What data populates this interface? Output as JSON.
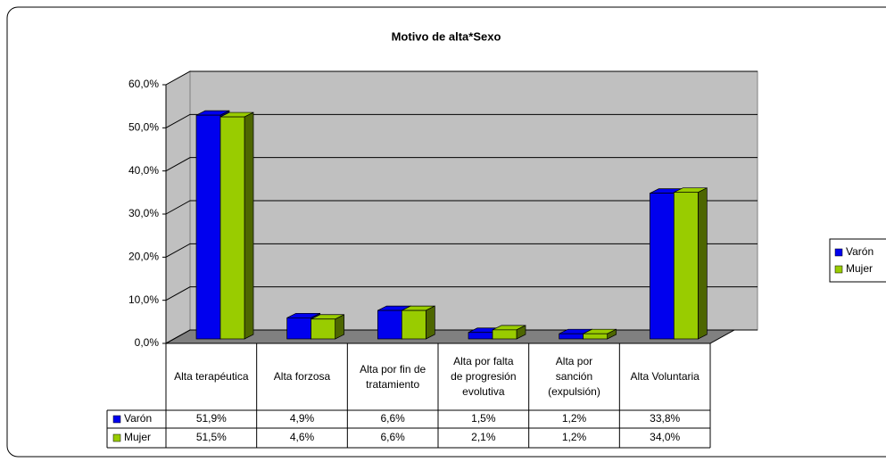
{
  "chart_data": {
    "type": "bar3d",
    "title": "Motivo de alta*Sexo",
    "categories": [
      "Alta terapéutica",
      "Alta forzosa",
      "Alta por fin de tratamiento",
      "Alta por falta de progresión evolutiva",
      "Alta por sanción (expulsión)",
      "Alta Voluntaria"
    ],
    "series": [
      {
        "name": "Varón",
        "color": "#0000ee",
        "side": "#000080",
        "values": [
          51.9,
          4.9,
          6.6,
          1.5,
          1.2,
          33.8
        ],
        "value_labels": [
          "51,9%",
          "4,9%",
          "6,6%",
          "1,5%",
          "1,2%",
          "33,8%"
        ]
      },
      {
        "name": "Mujer",
        "color": "#99cc00",
        "side": "#4d6600",
        "values": [
          51.5,
          4.6,
          6.6,
          2.1,
          1.2,
          34.0
        ],
        "value_labels": [
          "51,5%",
          "4,6%",
          "6,6%",
          "2,1%",
          "1,2%",
          "34,0%"
        ]
      }
    ],
    "ylim": [
      0,
      60
    ],
    "yticks": [
      {
        "value": 0,
        "label": "0,0%"
      },
      {
        "value": 10,
        "label": "10,0%"
      },
      {
        "value": 20,
        "label": "20,0%"
      },
      {
        "value": 30,
        "label": "30,0%"
      },
      {
        "value": 40,
        "label": "40,0%"
      },
      {
        "value": 50,
        "label": "50,0%"
      },
      {
        "value": 60,
        "label": "60,0%"
      }
    ],
    "grid": true,
    "legend": "right"
  }
}
